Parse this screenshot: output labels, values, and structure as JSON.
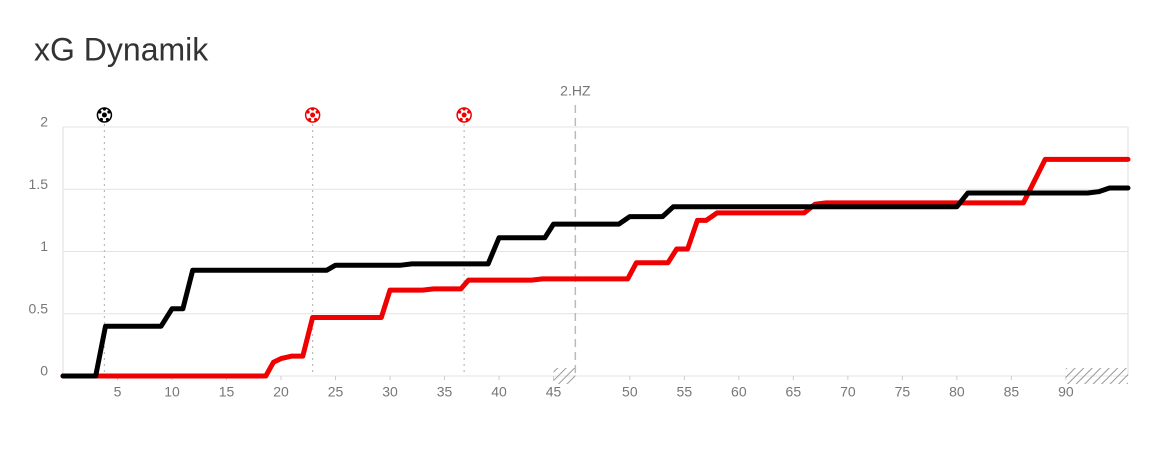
{
  "chart_data": {
    "type": "line",
    "title": "xG Dynamik",
    "xlim": [
      0,
      97.7
    ],
    "ylim": [
      0,
      2
    ],
    "yticks": [
      0,
      0.5,
      1,
      1.5,
      2
    ],
    "xticks": [
      5,
      10,
      15,
      20,
      25,
      30,
      35,
      40,
      45,
      {
        "value": 52,
        "label": "50"
      },
      {
        "value": 57,
        "label": "55"
      },
      {
        "value": 62,
        "label": "60"
      },
      {
        "value": 67,
        "label": "65"
      },
      {
        "value": 72,
        "label": "70"
      },
      {
        "value": 77,
        "label": "75"
      },
      {
        "value": 82,
        "label": "80"
      },
      {
        "value": 87,
        "label": "85"
      },
      {
        "value": 92,
        "label": "90"
      }
    ],
    "grid": true,
    "annotations": [
      {
        "x": 47,
        "label": "2.HZ"
      }
    ],
    "stoppage": [
      [
        45,
        47
      ],
      [
        92,
        97.7
      ]
    ],
    "goals": [
      {
        "x": 3.8,
        "color": "#000000"
      },
      {
        "x": 22.9,
        "color": "#f00000"
      },
      {
        "x": 36.8,
        "color": "#f00000"
      }
    ],
    "series": [
      {
        "color": "#000000",
        "x": [
          0,
          3.0,
          3.9,
          9.0,
          10,
          11,
          11.9,
          24.2,
          25,
          31,
          32,
          39,
          40,
          44.2,
          45,
          51,
          52,
          55,
          56,
          82,
          83,
          94,
          95,
          96,
          97.7
        ],
        "values": [
          0,
          0,
          0.4,
          0.4,
          0.54,
          0.54,
          0.85,
          0.85,
          0.89,
          0.89,
          0.9,
          0.9,
          1.11,
          1.11,
          1.22,
          1.22,
          1.28,
          1.28,
          1.36,
          1.36,
          1.47,
          1.47,
          1.48,
          1.51,
          1.51
        ]
      },
      {
        "color": "#f00000",
        "x": [
          0,
          18.6,
          19.3,
          20,
          21,
          22,
          22.9,
          29.2,
          30,
          33,
          34,
          36.5,
          37.2,
          43,
          44,
          51.8,
          52.6,
          55.5,
          56.3,
          57.3,
          58.2,
          59,
          60,
          68,
          69,
          70,
          88.1,
          90.1,
          97.7
        ],
        "values": [
          0,
          0,
          0.11,
          0.14,
          0.16,
          0.16,
          0.47,
          0.47,
          0.69,
          0.69,
          0.7,
          0.7,
          0.77,
          0.77,
          0.78,
          0.78,
          0.91,
          0.91,
          1.02,
          1.02,
          1.25,
          1.25,
          1.31,
          1.31,
          1.38,
          1.39,
          1.39,
          1.74,
          1.74
        ]
      }
    ]
  }
}
